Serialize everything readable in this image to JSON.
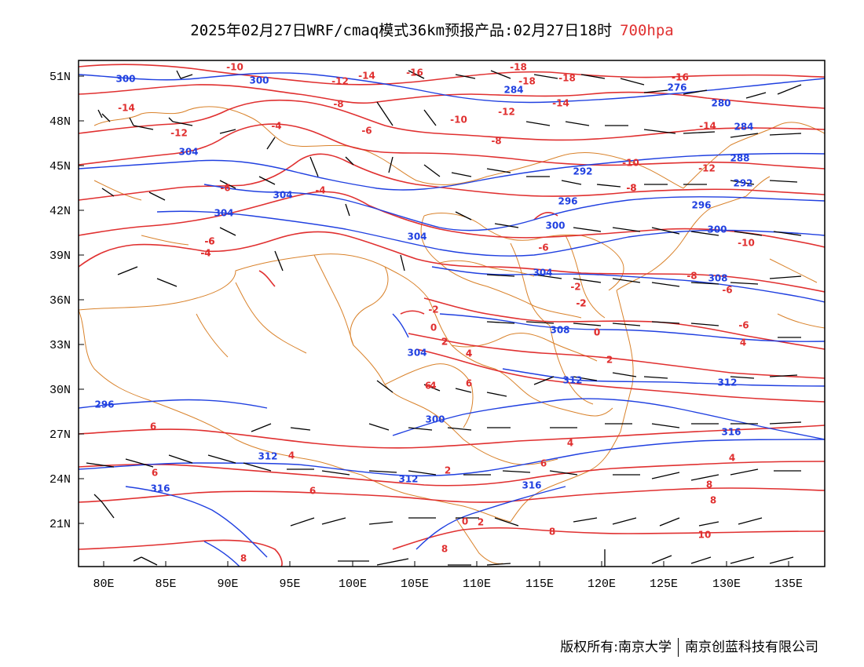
{
  "header": {
    "title": "2025年02月27日WRF/cmaq模式36km预报产品:02月27日18时",
    "level": "700hpa"
  },
  "axes": {
    "lat_labels": [
      "51N",
      "48N",
      "45N",
      "42N",
      "39N",
      "36N",
      "33N",
      "30N",
      "27N",
      "24N",
      "21N"
    ],
    "lon_labels": [
      "80E",
      "85E",
      "90E",
      "95E",
      "100E",
      "105E",
      "110E",
      "115E",
      "120E",
      "125E",
      "130E",
      "135E"
    ]
  },
  "footer": {
    "left": "版权所有:南京大学",
    "right": "南京创蓝科技有限公司"
  },
  "colors": {
    "temperature": "#e03030",
    "height": "#2040e0",
    "border": "#d9822b",
    "wind": "#000000"
  },
  "temperature_labels": [
    "-10",
    "-12",
    "-14",
    "-16",
    "-18",
    "-18",
    "-18",
    "-16",
    "-14",
    "-14",
    "-12",
    "-12",
    "-10",
    "-8",
    "-8",
    "-6",
    "-4",
    "-4",
    "-6",
    "-8",
    "-6",
    "-4",
    "-2",
    "-2",
    "0",
    "-2",
    "0",
    "2",
    "2",
    "4",
    "4",
    "6",
    "6",
    "6",
    "6",
    "8",
    "6",
    "4",
    "2",
    "0",
    "2",
    "4",
    "-6",
    "-8",
    "-6",
    "-10",
    "-12",
    "-14",
    "-16",
    "-8",
    "-10",
    "-6",
    "4",
    "6",
    "8",
    "8",
    "8",
    "10",
    "8",
    "-4",
    "-2",
    "4",
    "-6",
    "-4",
    "0",
    "2"
  ],
  "height_labels": [
    "300",
    "300",
    "304",
    "304",
    "304",
    "304",
    "284",
    "276",
    "280",
    "284",
    "288",
    "292",
    "292",
    "296",
    "296",
    "300",
    "300",
    "304",
    "308",
    "304",
    "308",
    "312",
    "312",
    "312",
    "312",
    "316",
    "316",
    "316",
    "300",
    "296"
  ],
  "wind_barbs": "north-westerly to westerly flow, shown by barbs"
}
